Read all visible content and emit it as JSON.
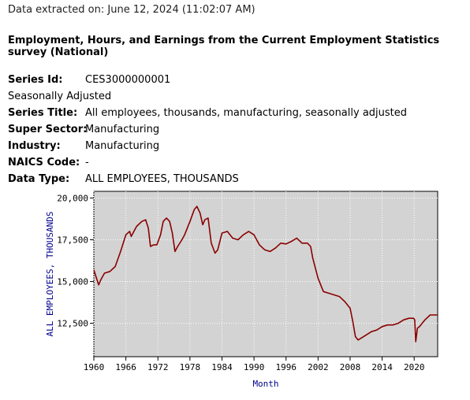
{
  "header": {
    "extracted": "Data extracted on: June 12, 2024 (11:02:07 AM)",
    "survey_title": "Employment, Hours, and Earnings from the Current Employment Statistics survey (National)"
  },
  "series_info": {
    "series_id_label": "Series Id:",
    "series_id": "CES3000000001",
    "seasonal": "Seasonally Adjusted",
    "series_title_label": "Series Title:",
    "series_title": "All employees, thousands, manufacturing, seasonally adjusted",
    "super_sector_label": "Super Sector:",
    "super_sector": "Manufacturing",
    "industry_label": "Industry:",
    "industry": "Manufacturing",
    "naics_label": "NAICS Code:",
    "naics": "-",
    "data_type_label": "Data Type:",
    "data_type": "ALL EMPLOYEES, THOUSANDS"
  },
  "chart_data": {
    "type": "line",
    "xlabel": "Month",
    "ylabel": "ALL EMPLOYEES, THOUSANDS",
    "xlim": [
      1960,
      2024.4
    ],
    "ylim": [
      10500,
      20400
    ],
    "x_ticks": [
      1960,
      1966,
      1972,
      1978,
      1984,
      1990,
      1996,
      2002,
      2008,
      2014,
      2020
    ],
    "y_ticks": [
      12500,
      15000,
      17500,
      20000
    ],
    "y_tick_labels": [
      "12,500",
      "15,000",
      "17,500",
      "20,000"
    ],
    "grid": true,
    "line_color": "#8b0000",
    "plot_bg": "#d3d3d3",
    "series": [
      {
        "x": [
          1960,
          1960.4,
          1960.9,
          1961.3,
          1962,
          1963,
          1964,
          1965,
          1966,
          1966.7,
          1967,
          1967.5,
          1968,
          1969,
          1969.7,
          1970.2,
          1970.6,
          1971.2,
          1971.8,
          1972.5,
          1973,
          1973.6,
          1974.2,
          1974.7,
          1975.2,
          1975.7,
          1976.5,
          1977,
          1978,
          1978.8,
          1979.3,
          1979.9,
          1980.4,
          1980.8,
          1981.4,
          1982,
          1982.7,
          1983.2,
          1984,
          1985,
          1986,
          1987,
          1988,
          1989,
          1990,
          1991,
          1992,
          1993,
          1994,
          1995,
          1996,
          1997,
          1998,
          1999,
          2000,
          2000.6,
          2001,
          2002,
          2003,
          2004,
          2005,
          2006,
          2007,
          2008,
          2008.5,
          2009,
          2009.5,
          2010,
          2011,
          2012,
          2013,
          2014,
          2015,
          2016,
          2017,
          2018,
          2019,
          2019.9,
          2020.1,
          2020.3,
          2020.6,
          2021,
          2022,
          2023,
          2024.4
        ],
        "y": [
          15700,
          15300,
          14800,
          15100,
          15500,
          15600,
          15900,
          16800,
          17800,
          18000,
          17700,
          18000,
          18300,
          18600,
          18700,
          18200,
          17100,
          17200,
          17200,
          17800,
          18600,
          18800,
          18600,
          17900,
          16800,
          17100,
          17500,
          17800,
          18600,
          19300,
          19500,
          19100,
          18400,
          18700,
          18800,
          17300,
          16700,
          16900,
          17900,
          18000,
          17600,
          17500,
          17800,
          18000,
          17800,
          17200,
          16900,
          16800,
          17000,
          17300,
          17250,
          17400,
          17600,
          17300,
          17300,
          17100,
          16400,
          15200,
          14400,
          14300,
          14200,
          14100,
          13800,
          13400,
          12600,
          11700,
          11500,
          11600,
          11800,
          12000,
          12100,
          12300,
          12400,
          12400,
          12500,
          12700,
          12800,
          12800,
          12700,
          11400,
          12200,
          12300,
          12700,
          13000,
          13000
        ]
      }
    ]
  }
}
